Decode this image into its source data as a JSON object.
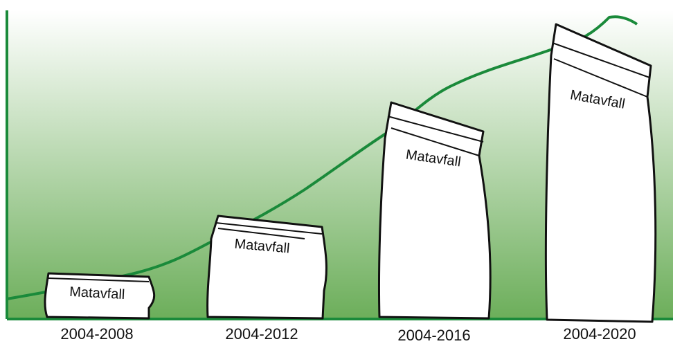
{
  "bags": [
    {
      "label": "Matavfall",
      "period": "2004-2008"
    },
    {
      "label": "Matavfall",
      "period": "2004-2012"
    },
    {
      "label": "Matavfall",
      "period": "2004-2016"
    },
    {
      "label": "Matavfall",
      "period": "2004-2020"
    }
  ]
}
